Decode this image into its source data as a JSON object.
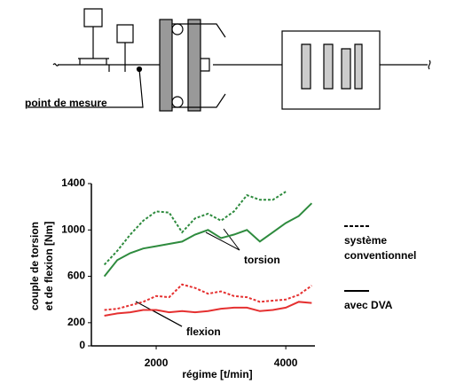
{
  "diagram": {
    "label": "point de mesure"
  },
  "chart_data": {
    "type": "line",
    "ylabel": [
      "couple de torsion",
      "et de flexion [Nm]"
    ],
    "xlabel": "régime [t/min]",
    "x": [
      1200,
      1400,
      1600,
      1800,
      2000,
      2200,
      2400,
      2600,
      2800,
      3000,
      3200,
      3400,
      3600,
      3800,
      4000,
      4200,
      4400
    ],
    "series": [
      {
        "color": "#2e8b3e",
        "dash": true,
        "values": [
          700,
          820,
          960,
          1080,
          1160,
          1150,
          980,
          1100,
          1140,
          1080,
          1160,
          1300,
          1260,
          1260,
          1330,
          null,
          null
        ]
      },
      {
        "color": "#2e8b3e",
        "dash": false,
        "values": [
          600,
          740,
          800,
          840,
          860,
          880,
          900,
          960,
          1000,
          930,
          960,
          1000,
          900,
          980,
          1060,
          1120,
          1230
        ]
      },
      {
        "color": "#e53030",
        "dash": true,
        "values": [
          310,
          320,
          350,
          380,
          430,
          420,
          530,
          500,
          450,
          470,
          430,
          420,
          380,
          390,
          400,
          440,
          520
        ]
      },
      {
        "color": "#e53030",
        "dash": false,
        "values": [
          260,
          280,
          290,
          310,
          310,
          290,
          300,
          290,
          300,
          320,
          330,
          330,
          300,
          310,
          330,
          380,
          370
        ]
      }
    ],
    "legend": [
      {
        "name": "système conventionnel",
        "dash": true
      },
      {
        "name": "avec DVA",
        "dash": false
      }
    ],
    "annotations": [
      "torsion",
      "flexion"
    ],
    "xlim": [
      1000,
      4450
    ],
    "ylim": [
      0,
      1400
    ],
    "xticks": [
      2000,
      4000
    ],
    "yticks": [
      0,
      200,
      600,
      1000,
      1400
    ]
  }
}
